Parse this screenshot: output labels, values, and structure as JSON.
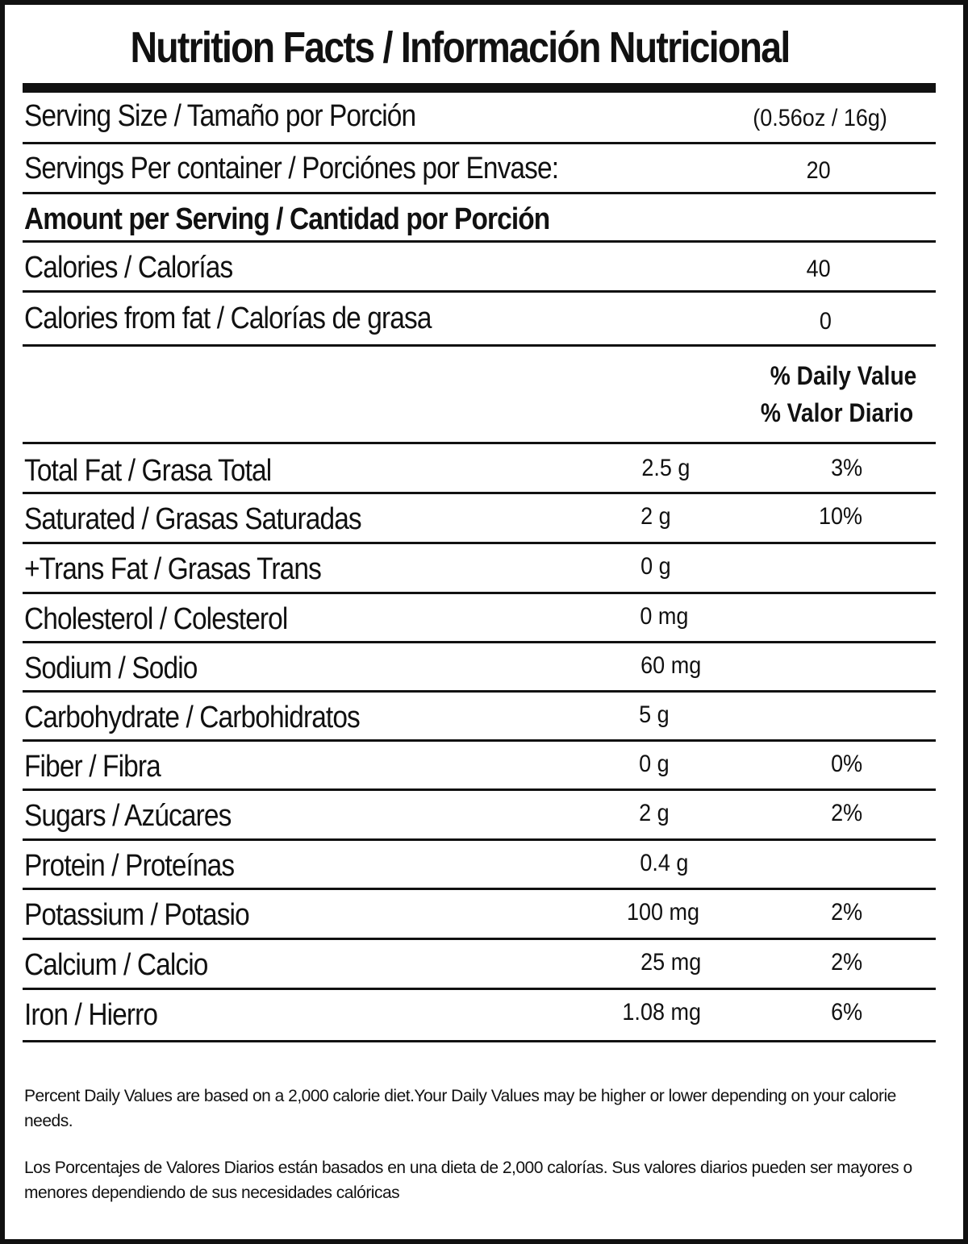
{
  "title": "Nutrition Facts / Información Nutricional",
  "serving_size": {
    "label": "Serving Size / Tamaño por Porción",
    "value": "(0.56oz / 16g)"
  },
  "servings_per_container": {
    "label": "Servings Per container / Porciónes por Envase:",
    "value": "20"
  },
  "amount_per_serving": "Amount per Serving / Cantidad por Porción",
  "calories": {
    "label": "Calories / Calorías",
    "value": "40"
  },
  "calories_from_fat": {
    "label": "Calories from fat / Calorías de grasa",
    "value": "0"
  },
  "daily_value_header": {
    "line1": "% Daily Value",
    "line2": "% Valor Diario"
  },
  "nutrients": [
    {
      "label": "Total Fat / Grasa Total",
      "amount": "2.5 g",
      "dv": "3%"
    },
    {
      "label": "Saturated / Grasas Saturadas",
      "amount": "2 g",
      "dv": "10%"
    },
    {
      "label": "+Trans Fat / Grasas Trans",
      "amount": "0 g",
      "dv": ""
    },
    {
      "label": "Cholesterol / Colesterol",
      "amount": "0 mg",
      "dv": ""
    },
    {
      "label": "Sodium / Sodio",
      "amount": "60 mg",
      "dv": ""
    },
    {
      "label": "Carbohydrate / Carbohidratos",
      "amount": "5 g",
      "dv": ""
    },
    {
      "label": "Fiber / Fibra",
      "amount": "0 g",
      "dv": "0%"
    },
    {
      "label": "Sugars / Azúcares",
      "amount": "2 g",
      "dv": "2%"
    },
    {
      "label": "Protein / Proteínas",
      "amount": "0.4 g",
      "dv": ""
    },
    {
      "label": "Potassium / Potasio",
      "amount": "100 mg",
      "dv": "2%"
    },
    {
      "label": "Calcium / Calcio",
      "amount": "25 mg",
      "dv": "2%"
    },
    {
      "label": "Iron / Hierro",
      "amount": "1.08 mg",
      "dv": "6%"
    }
  ],
  "footnote_en": "Percent Daily Values are based on a 2,000 calorie diet.Your Daily Values may be higher or lower depending on your calorie needs.",
  "footnote_es": "Los Porcentajes de Valores Diarios están basados en una dieta de 2,000 calorías. Sus valores diarios pueden ser mayores o menores dependiendo de sus necesidades calóricas"
}
